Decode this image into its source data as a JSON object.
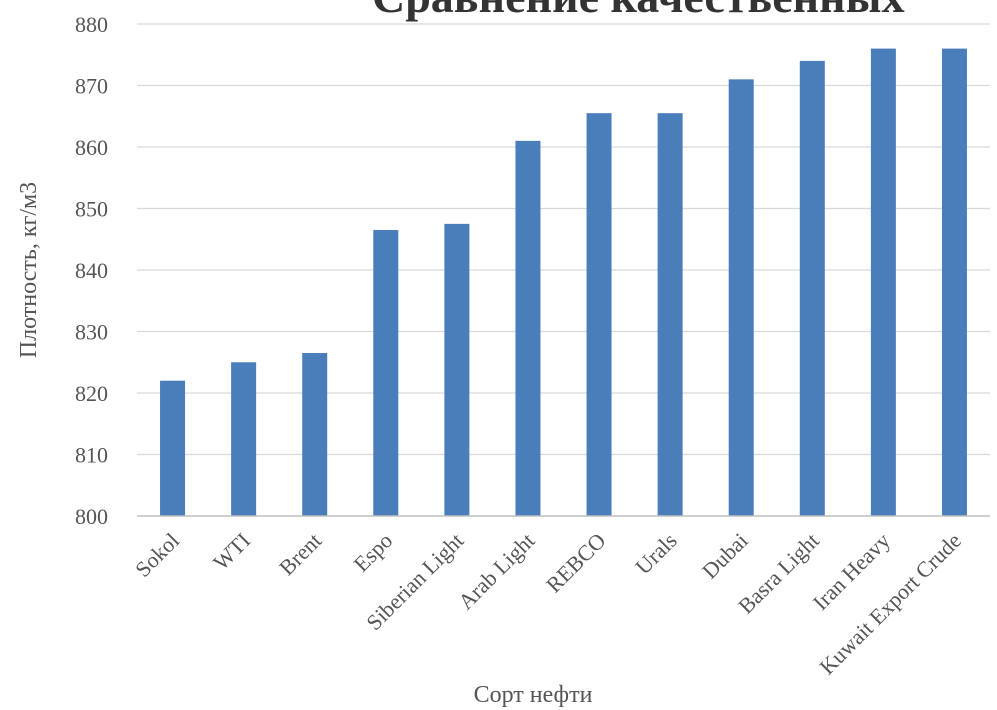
{
  "chart_data": {
    "type": "bar",
    "title": "Сравнение качественных",
    "xlabel": "Сорт нефти",
    "ylabel": "Плотность, кг/м3",
    "categories": [
      "Sokol",
      "WTI",
      "Brent",
      "Espo",
      "Siberian Light",
      "Arab Light",
      "REBCO",
      "Urals",
      "Dubai",
      "Basra Light",
      "Iran Heavy",
      "Kuwait Export Crude"
    ],
    "values": [
      822,
      825,
      826.5,
      846.5,
      847.5,
      861,
      865.5,
      865.5,
      871,
      874,
      876,
      876
    ],
    "ylim": [
      800,
      880
    ],
    "yticks": [
      800,
      810,
      820,
      830,
      840,
      850,
      860,
      870,
      880
    ],
    "grid": true,
    "bar_color": "#4a7ebb"
  }
}
